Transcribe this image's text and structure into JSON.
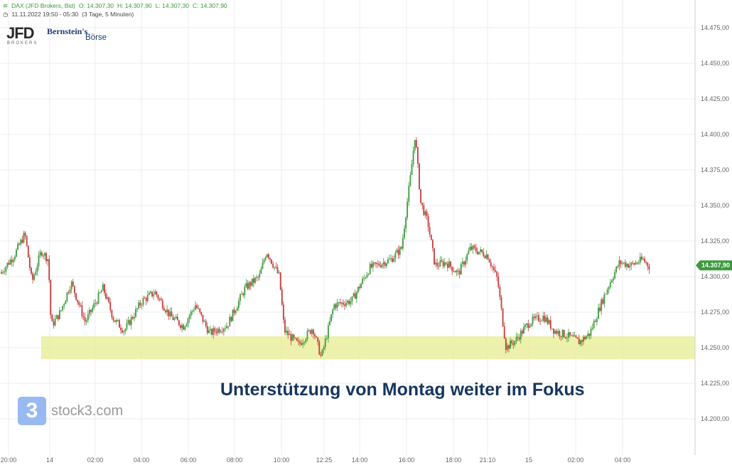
{
  "header": {
    "symbol_line": [
      "DAX (JFD Brokers, Bid)",
      "O: 14.307,30",
      "H: 14.307,90",
      "L: 14.307,30",
      "C: 14.307,90"
    ],
    "range": "11.11.2022 19:50 - 05:30",
    "period": "(3 Tage, 5 Minuten)"
  },
  "logos": {
    "jfd": "JFD",
    "jfd_sub": "BROKERS",
    "bernstein_1": "Bernstein's",
    "bernstein_2": "Börse",
    "stock3_mark": "3",
    "stock3": "stock3.com"
  },
  "headline": "Unterstützung von Montag weiter im Fokus",
  "colors": {
    "up": "#3d9a3d",
    "down": "#c83a3a",
    "support_zone": "#e9ee9e",
    "headline": "#16365e",
    "last_price_badge": "#3d9a3d",
    "grid": "#ececec"
  },
  "chart_data": {
    "type": "candlestick",
    "y_axis": {
      "ylim": [
        14187,
        14487
      ],
      "ticks": [
        14200,
        14225,
        14250,
        14275,
        14300,
        14325,
        14350,
        14375,
        14400,
        14425,
        14450,
        14475
      ],
      "tick_labels": [
        "14.200,00",
        "14.225,00",
        "14.250,00",
        "14.275,00",
        "14.300,00",
        "14.325,00",
        "14.350,00",
        "14.375,00",
        "14.400,00",
        "14.425,00",
        "14.450,00",
        "14.475,00"
      ]
    },
    "x_axis": {
      "tick_labels": [
        "20:00",
        "14",
        "02:00",
        "04:00",
        "06:00",
        "08:00",
        "10:00",
        "12:25",
        "14:00",
        "16:00",
        "18:00",
        "21:10",
        "15",
        "02:00",
        "04:00"
      ]
    },
    "grid": true,
    "last_price": 14307.9,
    "last_price_label": "14.307,90",
    "support_zone": [
      14242,
      14258
    ],
    "series_path": [
      [
        0,
        14302
      ],
      [
        20,
        14315
      ],
      [
        35,
        14330
      ],
      [
        45,
        14296
      ],
      [
        58,
        14318
      ],
      [
        68,
        14312
      ],
      [
        72,
        14265
      ],
      [
        85,
        14275
      ],
      [
        100,
        14296
      ],
      [
        120,
        14268
      ],
      [
        145,
        14292
      ],
      [
        160,
        14270
      ],
      [
        175,
        14262
      ],
      [
        200,
        14283
      ],
      [
        218,
        14289
      ],
      [
        240,
        14272
      ],
      [
        258,
        14265
      ],
      [
        275,
        14280
      ],
      [
        295,
        14260
      ],
      [
        320,
        14266
      ],
      [
        345,
        14292
      ],
      [
        365,
        14300
      ],
      [
        375,
        14318
      ],
      [
        393,
        14300
      ],
      [
        400,
        14262
      ],
      [
        420,
        14252
      ],
      [
        440,
        14264
      ],
      [
        452,
        14243
      ],
      [
        470,
        14280
      ],
      [
        495,
        14283
      ],
      [
        520,
        14306
      ],
      [
        550,
        14312
      ],
      [
        565,
        14320
      ],
      [
        578,
        14372
      ],
      [
        584,
        14400
      ],
      [
        592,
        14352
      ],
      [
        602,
        14338
      ],
      [
        612,
        14308
      ],
      [
        628,
        14310
      ],
      [
        645,
        14302
      ],
      [
        662,
        14320
      ],
      [
        672,
        14318
      ],
      [
        686,
        14315
      ],
      [
        700,
        14298
      ],
      [
        707,
        14270
      ],
      [
        712,
        14250
      ],
      [
        725,
        14255
      ],
      [
        745,
        14268
      ],
      [
        765,
        14272
      ],
      [
        780,
        14262
      ],
      [
        800,
        14258
      ],
      [
        815,
        14254
      ],
      [
        830,
        14260
      ],
      [
        845,
        14280
      ],
      [
        860,
        14298
      ],
      [
        872,
        14310
      ],
      [
        888,
        14308
      ],
      [
        905,
        14312
      ],
      [
        914,
        14307
      ]
    ]
  }
}
